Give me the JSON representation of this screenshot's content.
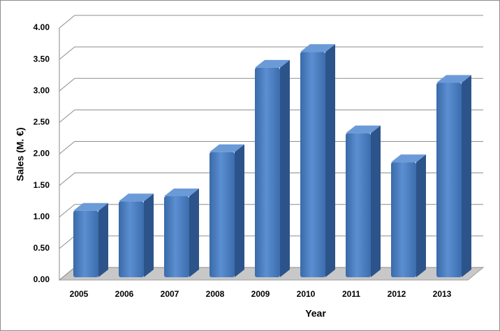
{
  "chart_data": {
    "type": "bar3d",
    "x_label": "Year",
    "y_label": "Sales (M. €)",
    "categories": [
      "2005",
      "2006",
      "2007",
      "2008",
      "2009",
      "2010",
      "2011",
      "2012",
      "2013"
    ],
    "values": [
      1.1,
      1.25,
      1.33,
      2.03,
      3.37,
      3.62,
      2.33,
      1.87,
      3.13
    ],
    "color": "#4a7ebf",
    "ylim": [
      0,
      4
    ],
    "yticks": [
      {
        "value": 0,
        "label": "0.00"
      },
      {
        "value": 0.5,
        "label": "0.50"
      },
      {
        "value": 1,
        "label": "1.00"
      },
      {
        "value": 1.5,
        "label": "1.50"
      },
      {
        "value": 2,
        "label": "2.00"
      },
      {
        "value": 2.5,
        "label": "2.50"
      },
      {
        "value": 3,
        "label": "3.00"
      },
      {
        "value": 3.5,
        "label": "3.50"
      },
      {
        "value": 4,
        "label": "4.00"
      }
    ],
    "grid": true
  }
}
